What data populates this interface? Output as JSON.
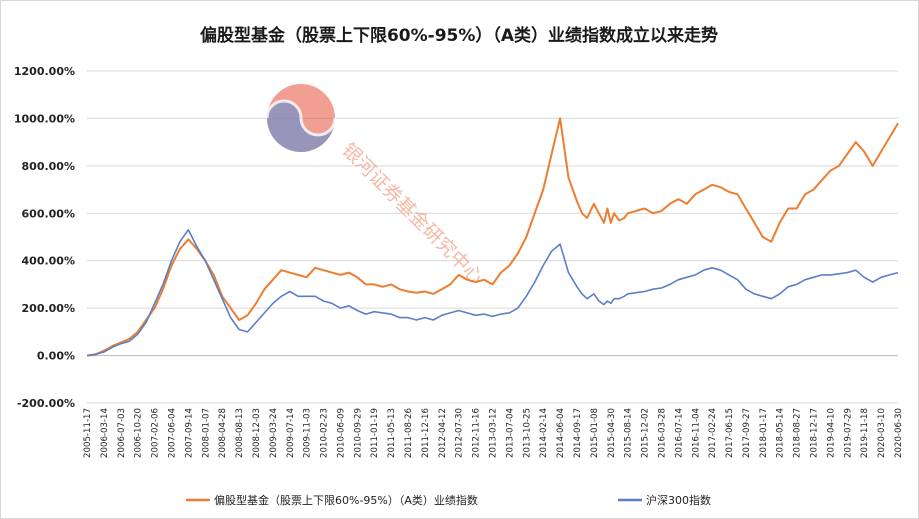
{
  "chart_data": {
    "type": "line",
    "title": "偏股型基金（股票上下限60%-95%）（A类）业绩指数成立以来走势",
    "xlabel": "",
    "ylabel": "",
    "ylim": [
      -200,
      1200
    ],
    "ytick_step": 200,
    "ytick_format": "percent_2dp",
    "grid": true,
    "legend_position": "bottom",
    "x_ticks": [
      "2005-11-17",
      "2006-03-14",
      "2006-07-03",
      "2006-10-20",
      "2007-02-06",
      "2007-06-04",
      "2007-09-14",
      "2008-01-07",
      "2008-04-28",
      "2008-08-13",
      "2008-12-03",
      "2009-03-24",
      "2009-07-14",
      "2009-11-03",
      "2010-02-23",
      "2010-06-09",
      "2010-09-29",
      "2011-01-19",
      "2011-05-13",
      "2011-08-26",
      "2011-12-16",
      "2012-04-12",
      "2012-07-30",
      "2012-11-16",
      "2013-03-12",
      "2013-07-04",
      "2013-10-25",
      "2014-02-14",
      "2014-06-04",
      "2014-09-17",
      "2015-01-08",
      "2015-04-30",
      "2015-08-14",
      "2015-12-02",
      "2016-03-28",
      "2016-07-14",
      "2016-11-04",
      "2017-02-24",
      "2017-06-15",
      "2017-09-27",
      "2018-01-17",
      "2018-05-14",
      "2018-08-27",
      "2018-12-17",
      "2019-04-10",
      "2019-07-29",
      "2019-11-18",
      "2020-03-10",
      "2020-06-30"
    ],
    "series": [
      {
        "name": "偏股型基金（股票上下限60%-95%）（A类）业绩指数",
        "color": "#ed7d31",
        "x": [
          0,
          0.5,
          1,
          1.5,
          2,
          2.5,
          3,
          3.5,
          4,
          4.5,
          5,
          5.5,
          6,
          6.5,
          7,
          7.5,
          8,
          8.5,
          9,
          9.5,
          10,
          10.5,
          11,
          11.5,
          12,
          12.5,
          13,
          13.5,
          14,
          14.5,
          15,
          15.5,
          16,
          16.5,
          17,
          17.5,
          18,
          18.5,
          19,
          19.5,
          20,
          20.5,
          21,
          21.5,
          22,
          22.5,
          23,
          23.5,
          24,
          24.5,
          25,
          25.5,
          26,
          26.5,
          27,
          27.5,
          28,
          28.5,
          29,
          29.3,
          29.6,
          30,
          30.3,
          30.6,
          30.8,
          31,
          31.2,
          31.5,
          31.8,
          32,
          32.5,
          33,
          33.5,
          34,
          34.5,
          35,
          35.5,
          36,
          36.5,
          37,
          37.5,
          38,
          38.5,
          39,
          39.5,
          40,
          40.5,
          41,
          41.5,
          42,
          42.5,
          43,
          43.5,
          44,
          44.5,
          45,
          45.5,
          46,
          46.5,
          47,
          47.5,
          48
        ],
        "values": [
          0,
          5,
          20,
          40,
          55,
          70,
          100,
          150,
          200,
          280,
          380,
          450,
          490,
          450,
          400,
          340,
          250,
          200,
          150,
          170,
          220,
          280,
          320,
          360,
          350,
          340,
          330,
          370,
          360,
          350,
          340,
          350,
          330,
          300,
          300,
          290,
          300,
          280,
          270,
          265,
          270,
          260,
          280,
          300,
          340,
          320,
          310,
          320,
          300,
          350,
          380,
          430,
          500,
          600,
          700,
          850,
          1000,
          750,
          650,
          600,
          580,
          640,
          600,
          560,
          620,
          560,
          600,
          570,
          580,
          600,
          610,
          620,
          600,
          610,
          640,
          660,
          640,
          680,
          700,
          720,
          710,
          690,
          680,
          620,
          560,
          500,
          480,
          560,
          620,
          620,
          680,
          700,
          740,
          780,
          800,
          850,
          900,
          860,
          800,
          860,
          920,
          980
        ]
      },
      {
        "name": "沪深300指数",
        "color": "#5b7fc7",
        "x": [
          0,
          0.5,
          1,
          1.5,
          2,
          2.5,
          3,
          3.5,
          4,
          4.5,
          5,
          5.5,
          6,
          6.5,
          7,
          7.5,
          8,
          8.5,
          9,
          9.5,
          10,
          10.5,
          11,
          11.5,
          12,
          12.5,
          13,
          13.5,
          14,
          14.5,
          15,
          15.5,
          16,
          16.5,
          17,
          17.5,
          18,
          18.5,
          19,
          19.5,
          20,
          20.5,
          21,
          21.5,
          22,
          22.5,
          23,
          23.5,
          24,
          24.5,
          25,
          25.5,
          26,
          26.5,
          27,
          27.5,
          28,
          28.5,
          29,
          29.3,
          29.6,
          30,
          30.3,
          30.6,
          30.8,
          31,
          31.2,
          31.5,
          31.8,
          32,
          32.5,
          33,
          33.5,
          34,
          34.5,
          35,
          35.5,
          36,
          36.5,
          37,
          37.5,
          38,
          38.5,
          39,
          39.5,
          40,
          40.5,
          41,
          41.5,
          42,
          42.5,
          43,
          43.5,
          44,
          44.5,
          45,
          45.5,
          46,
          46.5,
          47,
          47.5,
          48
        ],
        "values": [
          0,
          5,
          15,
          35,
          50,
          60,
          90,
          140,
          220,
          300,
          400,
          480,
          530,
          460,
          400,
          320,
          240,
          160,
          110,
          100,
          140,
          180,
          220,
          250,
          270,
          250,
          250,
          250,
          230,
          220,
          200,
          210,
          190,
          175,
          185,
          180,
          175,
          160,
          160,
          150,
          160,
          150,
          170,
          180,
          190,
          180,
          170,
          175,
          165,
          175,
          180,
          200,
          250,
          310,
          380,
          440,
          470,
          350,
          290,
          260,
          240,
          260,
          230,
          215,
          230,
          220,
          240,
          240,
          250,
          260,
          265,
          270,
          280,
          285,
          300,
          320,
          330,
          340,
          360,
          370,
          360,
          340,
          320,
          280,
          260,
          250,
          240,
          260,
          290,
          300,
          320,
          330,
          340,
          340,
          345,
          350,
          360,
          330,
          310,
          330,
          340,
          350
        ]
      }
    ]
  },
  "legend": {
    "orange": "偏股型基金（股票上下限60%-95%）（A类）业绩指数",
    "blue": "沪深300指数"
  },
  "watermark": {
    "text": "银河证券基金研究中心",
    "colors": {
      "red": "#e8513a",
      "blue": "#5b8fd3"
    }
  }
}
